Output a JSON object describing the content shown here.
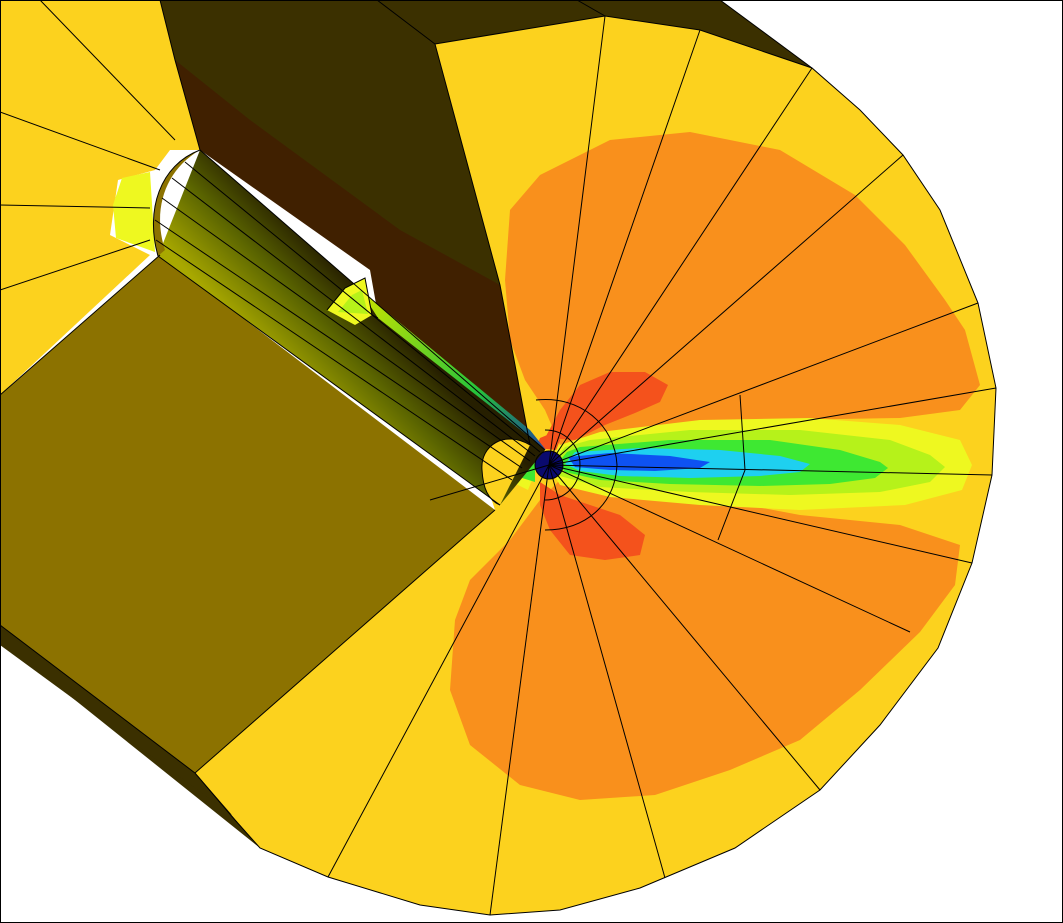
{
  "scene": {
    "subject": "finite-element-contour-plot",
    "colors": {
      "background": "#ffffff",
      "level_outer": "#fcd21e",
      "level_high": "#f9901c",
      "level_peak": "#f4521c",
      "level_yellow": "#eef820",
      "level_lime": "#b6f21a",
      "level_green": "#3ee832",
      "level_cyan": "#1ed0f0",
      "level_blue": "#0e52f2",
      "level_core": "#0a0a6e",
      "solid_face_light": "#8c7200",
      "solid_face_dark": "#3b3000",
      "solid_face_shadow": "#402000",
      "mesh_lines": "#000000"
    }
  }
}
